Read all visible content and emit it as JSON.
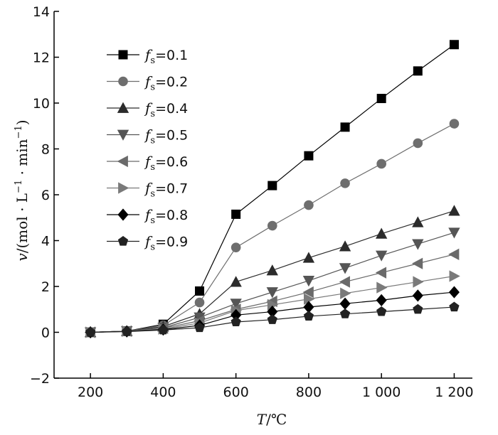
{
  "chart_data": {
    "type": "line",
    "x": [
      200,
      300,
      400,
      500,
      600,
      700,
      800,
      900,
      1000,
      1100,
      1200
    ],
    "x_tick_labels": [
      "200",
      "400",
      "600",
      "800",
      "1 000",
      "1 200"
    ],
    "x_ticks": [
      200,
      400,
      600,
      800,
      1000,
      1200
    ],
    "y_ticks": [
      -2,
      0,
      2,
      4,
      6,
      8,
      10,
      12,
      14
    ],
    "y_tick_labels": [
      "−2",
      "0",
      "2",
      "4",
      "6",
      "8",
      "10",
      "12",
      "14"
    ],
    "xlim": [
      100,
      1250
    ],
    "ylim": [
      -2,
      14
    ],
    "xlabel": {
      "var": "T",
      "unit": "/℃"
    },
    "ylabel": {
      "var": "v",
      "unit": "/(mol · L",
      "sup1": "−1",
      "mid": " · min",
      "sup2": "−1",
      "end": ")"
    },
    "grid": false,
    "legend_position": "top-left",
    "legend_var": "f",
    "legend_sub": "s",
    "series": [
      {
        "name": "=0.1",
        "marker": "square",
        "color": "#000000",
        "values": [
          0,
          0.05,
          0.35,
          1.8,
          5.15,
          6.4,
          7.7,
          8.95,
          10.2,
          11.4,
          12.55
        ]
      },
      {
        "name": "=0.2",
        "marker": "circle",
        "color": "#6e6e6e",
        "values": [
          0,
          0.05,
          0.3,
          1.3,
          3.7,
          4.65,
          5.55,
          6.5,
          7.35,
          8.25,
          9.1
        ]
      },
      {
        "name": "=0.4",
        "marker": "triangle-up",
        "color": "#2b2b2b",
        "values": [
          0,
          0.05,
          0.25,
          0.8,
          2.2,
          2.7,
          3.25,
          3.75,
          4.3,
          4.8,
          5.3
        ]
      },
      {
        "name": "=0.5",
        "marker": "triangle-down",
        "color": "#555555",
        "values": [
          0,
          0.05,
          0.2,
          0.65,
          1.25,
          1.75,
          2.25,
          2.8,
          3.35,
          3.85,
          4.35
        ]
      },
      {
        "name": "=0.6",
        "marker": "triangle-left",
        "color": "#6a6a6a",
        "values": [
          0,
          0.05,
          0.18,
          0.5,
          1.0,
          1.35,
          1.75,
          2.2,
          2.6,
          3.0,
          3.4
        ]
      },
      {
        "name": "=0.7",
        "marker": "triangle-right",
        "color": "#7a7a7a",
        "values": [
          0,
          0.05,
          0.15,
          0.4,
          0.95,
          1.2,
          1.45,
          1.7,
          1.95,
          2.2,
          2.45
        ]
      },
      {
        "name": "=0.8",
        "marker": "diamond",
        "color": "#000000",
        "values": [
          0,
          0.04,
          0.12,
          0.3,
          0.75,
          0.9,
          1.1,
          1.25,
          1.4,
          1.6,
          1.75
        ]
      },
      {
        "name": "=0.9",
        "marker": "pentagon",
        "color": "#222222",
        "values": [
          0,
          0.03,
          0.1,
          0.2,
          0.45,
          0.55,
          0.7,
          0.8,
          0.9,
          1.0,
          1.1
        ]
      }
    ]
  }
}
